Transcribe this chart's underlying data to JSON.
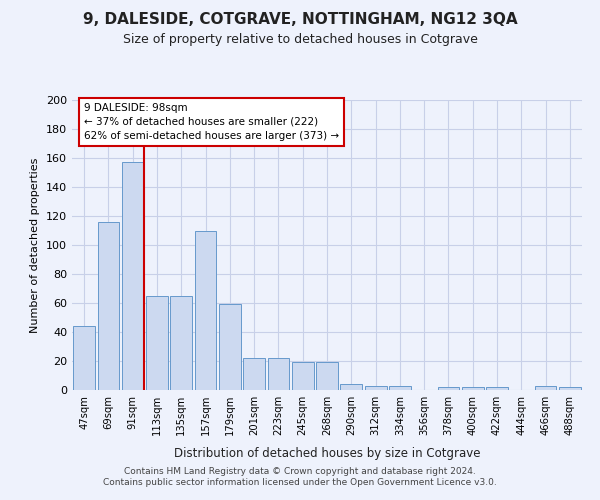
{
  "title": "9, DALESIDE, COTGRAVE, NOTTINGHAM, NG12 3QA",
  "subtitle": "Size of property relative to detached houses in Cotgrave",
  "xlabel": "Distribution of detached houses by size in Cotgrave",
  "ylabel": "Number of detached properties",
  "bar_labels": [
    "47sqm",
    "69sqm",
    "91sqm",
    "113sqm",
    "135sqm",
    "157sqm",
    "179sqm",
    "201sqm",
    "223sqm",
    "245sqm",
    "268sqm",
    "290sqm",
    "312sqm",
    "334sqm",
    "356sqm",
    "378sqm",
    "400sqm",
    "422sqm",
    "444sqm",
    "466sqm",
    "488sqm"
  ],
  "bar_values": [
    44,
    116,
    157,
    65,
    65,
    110,
    59,
    22,
    22,
    19,
    19,
    4,
    3,
    3,
    0,
    2,
    2,
    2,
    0,
    3,
    2
  ],
  "bar_color": "#ccd9f0",
  "bar_edgecolor": "#6699cc",
  "property_line_label": "9 DALESIDE: 98sqm",
  "annotation_line1": "← 37% of detached houses are smaller (222)",
  "annotation_line2": "62% of semi-detached houses are larger (373) →",
  "annotation_box_color": "#ffffff",
  "annotation_box_edgecolor": "#cc0000",
  "vline_color": "#cc0000",
  "ylim": [
    0,
    200
  ],
  "yticks": [
    0,
    20,
    40,
    60,
    80,
    100,
    120,
    140,
    160,
    180,
    200
  ],
  "footer1": "Contains HM Land Registry data © Crown copyright and database right 2024.",
  "footer2": "Contains public sector information licensed under the Open Government Licence v3.0.",
  "bg_color": "#eef2fc",
  "grid_color": "#c8d0e8",
  "title_fontsize": 11,
  "subtitle_fontsize": 9,
  "footer_fontsize": 6.5
}
